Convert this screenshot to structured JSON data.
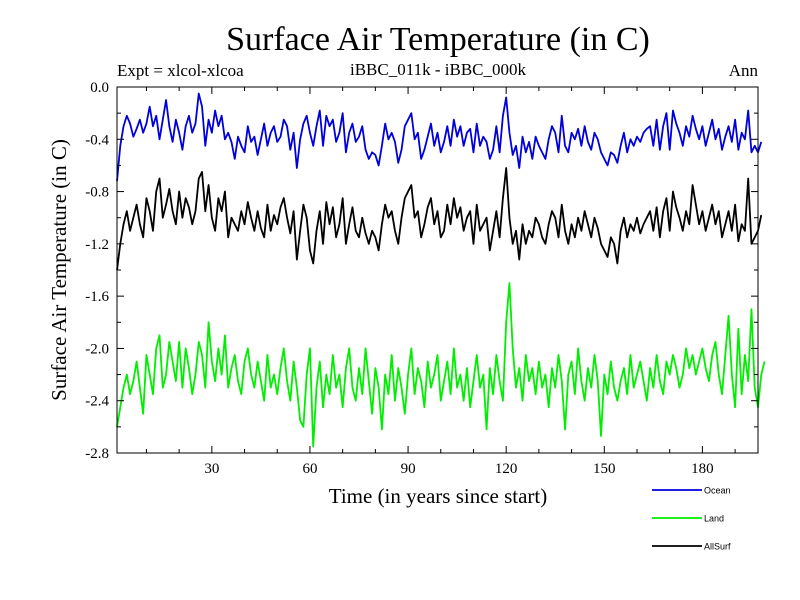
{
  "chart_data": {
    "type": "line",
    "title": "Surface Air Temperature (in C)",
    "subtitle": "iBBC_011k - iBBC_000k",
    "left_label": "Expt = xlcol-xlcoa",
    "right_label": "Ann",
    "xlabel": "Time (in years since start)",
    "ylabel": "Surface Air Temperature (in C)",
    "xlim": [
      1,
      197
    ],
    "ylim": [
      -2.8,
      0.0
    ],
    "xticks": [
      30,
      60,
      90,
      120,
      150,
      180
    ],
    "yticks": [
      0.0,
      -0.4,
      -0.8,
      -1.2,
      -1.6,
      -2.0,
      -2.4,
      -2.8
    ],
    "ytick_labels": [
      "0.0",
      "-0.4",
      "-0.8",
      "-1.2",
      "-1.6",
      "-2.0",
      "-2.4",
      "-2.8"
    ],
    "legend_position": "below-right",
    "series": [
      {
        "name": "Ocean",
        "color": "#0000dd",
        "x_start": 1,
        "values": [
          -0.72,
          -0.45,
          -0.3,
          -0.22,
          -0.28,
          -0.38,
          -0.32,
          -0.25,
          -0.35,
          -0.28,
          -0.15,
          -0.3,
          -0.22,
          -0.4,
          -0.25,
          -0.1,
          -0.3,
          -0.42,
          -0.25,
          -0.35,
          -0.48,
          -0.3,
          -0.22,
          -0.35,
          -0.28,
          -0.05,
          -0.15,
          -0.45,
          -0.25,
          -0.35,
          -0.18,
          -0.3,
          -0.22,
          -0.4,
          -0.35,
          -0.42,
          -0.55,
          -0.38,
          -0.45,
          -0.5,
          -0.3,
          -0.42,
          -0.38,
          -0.52,
          -0.4,
          -0.28,
          -0.45,
          -0.35,
          -0.3,
          -0.42,
          -0.38,
          -0.25,
          -0.3,
          -0.48,
          -0.35,
          -0.62,
          -0.4,
          -0.28,
          -0.22,
          -0.35,
          -0.45,
          -0.3,
          -0.18,
          -0.45,
          -0.22,
          -0.3,
          -0.25,
          -0.42,
          -0.35,
          -0.2,
          -0.5,
          -0.35,
          -0.28,
          -0.42,
          -0.38,
          -0.3,
          -0.48,
          -0.55,
          -0.5,
          -0.52,
          -0.6,
          -0.45,
          -0.28,
          -0.4,
          -0.35,
          -0.42,
          -0.58,
          -0.48,
          -0.3,
          -0.25,
          -0.2,
          -0.4,
          -0.35,
          -0.55,
          -0.48,
          -0.38,
          -0.28,
          -0.45,
          -0.35,
          -0.5,
          -0.42,
          -0.3,
          -0.45,
          -0.25,
          -0.38,
          -0.3,
          -0.45,
          -0.35,
          -0.32,
          -0.5,
          -0.28,
          -0.45,
          -0.38,
          -0.42,
          -0.55,
          -0.48,
          -0.3,
          -0.5,
          -0.22,
          -0.08,
          -0.35,
          -0.52,
          -0.45,
          -0.62,
          -0.38,
          -0.5,
          -0.42,
          -0.55,
          -0.38,
          -0.45,
          -0.5,
          -0.55,
          -0.4,
          -0.3,
          -0.35,
          -0.5,
          -0.22,
          -0.45,
          -0.5,
          -0.35,
          -0.4,
          -0.32,
          -0.45,
          -0.3,
          -0.42,
          -0.48,
          -0.35,
          -0.4,
          -0.5,
          -0.55,
          -0.6,
          -0.5,
          -0.52,
          -0.58,
          -0.45,
          -0.35,
          -0.5,
          -0.4,
          -0.45,
          -0.38,
          -0.42,
          -0.35,
          -0.32,
          -0.3,
          -0.45,
          -0.25,
          -0.48,
          -0.3,
          -0.2,
          -0.48,
          -0.18,
          -0.28,
          -0.35,
          -0.45,
          -0.3,
          -0.38,
          -0.22,
          -0.32,
          -0.4,
          -0.3,
          -0.45,
          -0.35,
          -0.25,
          -0.4,
          -0.32,
          -0.48,
          -0.38,
          -0.3,
          -0.42,
          -0.25,
          -0.48,
          -0.35,
          -0.4,
          -0.18,
          -0.5,
          -0.45,
          -0.5,
          -0.42
        ]
      },
      {
        "name": "Land",
        "color": "#00ee00",
        "x_start": 1,
        "values": [
          -2.6,
          -2.45,
          -2.3,
          -2.2,
          -2.35,
          -2.25,
          -2.1,
          -2.3,
          -2.5,
          -2.05,
          -2.2,
          -2.35,
          -2.0,
          -1.9,
          -2.3,
          -2.2,
          -1.95,
          -2.1,
          -2.25,
          -1.95,
          -2.3,
          -2.0,
          -2.15,
          -2.35,
          -2.2,
          -1.95,
          -2.05,
          -2.3,
          -1.8,
          -2.1,
          -2.25,
          -2.0,
          -2.2,
          -1.9,
          -2.3,
          -2.15,
          -2.05,
          -2.25,
          -2.35,
          -2.1,
          -2.0,
          -2.2,
          -2.3,
          -2.1,
          -2.25,
          -2.4,
          -2.05,
          -2.3,
          -2.2,
          -2.35,
          -2.15,
          -2.0,
          -2.25,
          -2.4,
          -2.1,
          -2.3,
          -2.55,
          -2.6,
          -2.2,
          -2.0,
          -2.75,
          -2.3,
          -2.1,
          -2.45,
          -2.2,
          -2.35,
          -2.05,
          -2.3,
          -2.2,
          -2.45,
          -2.15,
          -2.0,
          -2.3,
          -2.4,
          -2.15,
          -2.35,
          -2.0,
          -2.25,
          -2.5,
          -2.15,
          -2.3,
          -2.62,
          -2.2,
          -2.35,
          -2.05,
          -2.4,
          -2.15,
          -2.3,
          -2.5,
          -2.2,
          -2.0,
          -2.35,
          -2.15,
          -2.25,
          -2.45,
          -2.1,
          -2.3,
          -2.2,
          -2.05,
          -2.4,
          -2.25,
          -2.1,
          -2.35,
          -2.0,
          -2.3,
          -2.2,
          -2.4,
          -2.15,
          -2.45,
          -2.25,
          -2.05,
          -2.3,
          -2.2,
          -2.62,
          -2.15,
          -2.35,
          -2.05,
          -2.25,
          -2.4,
          -1.8,
          -1.5,
          -2.0,
          -2.3,
          -2.15,
          -2.4,
          -2.05,
          -2.25,
          -2.15,
          -2.35,
          -2.1,
          -2.3,
          -2.2,
          -2.45,
          -2.15,
          -2.3,
          -2.05,
          -2.25,
          -2.62,
          -2.2,
          -2.1,
          -2.35,
          -2.0,
          -2.25,
          -2.4,
          -2.15,
          -2.3,
          -2.05,
          -2.25,
          -2.67,
          -2.2,
          -2.35,
          -2.1,
          -2.3,
          -2.4,
          -2.25,
          -2.15,
          -2.35,
          -2.05,
          -2.3,
          -2.2,
          -2.1,
          -2.25,
          -2.4,
          -2.15,
          -2.3,
          -2.05,
          -2.25,
          -2.35,
          -2.1,
          -2.2,
          -2.05,
          -2.15,
          -2.3,
          -2.2,
          -2.0,
          -2.15,
          -2.05,
          -2.2,
          -2.1,
          -2.0,
          -2.15,
          -2.25,
          -2.05,
          -1.95,
          -2.2,
          -2.35,
          -2.05,
          -1.75,
          -2.2,
          -2.45,
          -1.85,
          -2.35,
          -2.05,
          -2.25,
          -1.7,
          -2.3,
          -2.45,
          -2.2,
          -2.1
        ]
      },
      {
        "name": "AllSurf",
        "color": "#000000",
        "x_start": 1,
        "values": [
          -1.4,
          -1.2,
          -1.05,
          -0.95,
          -1.1,
          -1.0,
          -0.9,
          -1.05,
          -1.15,
          -0.85,
          -0.95,
          -1.1,
          -0.8,
          -0.7,
          -1.0,
          -0.9,
          -0.78,
          -0.95,
          -1.05,
          -0.8,
          -1.0,
          -0.85,
          -0.92,
          -1.05,
          -0.95,
          -0.7,
          -0.65,
          -0.95,
          -0.75,
          -1.0,
          -1.1,
          -0.85,
          -0.95,
          -0.8,
          -1.15,
          -1.0,
          -1.05,
          -1.1,
          -0.95,
          -1.05,
          -0.88,
          -1.0,
          -1.1,
          -0.95,
          -1.08,
          -1.15,
          -0.9,
          -1.1,
          -0.98,
          -1.05,
          -0.92,
          -0.85,
          -1.0,
          -1.12,
          -0.95,
          -1.32,
          -1.1,
          -0.9,
          -1.0,
          -1.25,
          -1.35,
          -1.1,
          -0.95,
          -1.2,
          -0.88,
          -1.05,
          -0.92,
          -1.15,
          -1.05,
          -0.85,
          -1.2,
          -1.05,
          -0.92,
          -1.1,
          -1.15,
          -1.0,
          -1.12,
          -1.2,
          -1.1,
          -1.15,
          -1.25,
          -1.05,
          -0.9,
          -1.0,
          -0.95,
          -1.1,
          -1.2,
          -1.0,
          -0.85,
          -0.8,
          -0.75,
          -1.0,
          -0.95,
          -1.15,
          -1.05,
          -0.92,
          -0.85,
          -1.05,
          -0.95,
          -1.15,
          -1.1,
          -0.9,
          -1.05,
          -0.85,
          -1.0,
          -0.92,
          -1.1,
          -1.0,
          -0.95,
          -1.2,
          -0.9,
          -1.1,
          -1.05,
          -1.0,
          -1.25,
          -1.1,
          -0.95,
          -1.15,
          -0.85,
          -0.62,
          -1.0,
          -1.2,
          -1.1,
          -1.32,
          -1.05,
          -1.2,
          -1.1,
          -1.15,
          -1.0,
          -1.05,
          -1.15,
          -1.2,
          -1.05,
          -0.95,
          -1.0,
          -1.15,
          -0.9,
          -1.1,
          -1.2,
          -1.05,
          -1.15,
          -1.0,
          -1.1,
          -0.95,
          -1.05,
          -1.15,
          -1.0,
          -1.08,
          -1.2,
          -1.25,
          -1.3,
          -1.15,
          -1.2,
          -1.35,
          -1.1,
          -1.0,
          -1.15,
          -1.05,
          -1.1,
          -1.0,
          -1.12,
          -1.05,
          -1.0,
          -0.95,
          -1.1,
          -0.92,
          -1.15,
          -0.95,
          -0.85,
          -1.1,
          -0.8,
          -0.92,
          -1.0,
          -1.1,
          -0.95,
          -1.05,
          -0.75,
          -0.9,
          -1.05,
          -0.95,
          -1.1,
          -1.0,
          -0.9,
          -1.05,
          -0.95,
          -1.15,
          -1.05,
          -0.95,
          -1.1,
          -0.9,
          -1.18,
          -1.05,
          -1.1,
          -0.7,
          -1.2,
          -1.15,
          -1.1,
          -0.98
        ]
      }
    ]
  }
}
